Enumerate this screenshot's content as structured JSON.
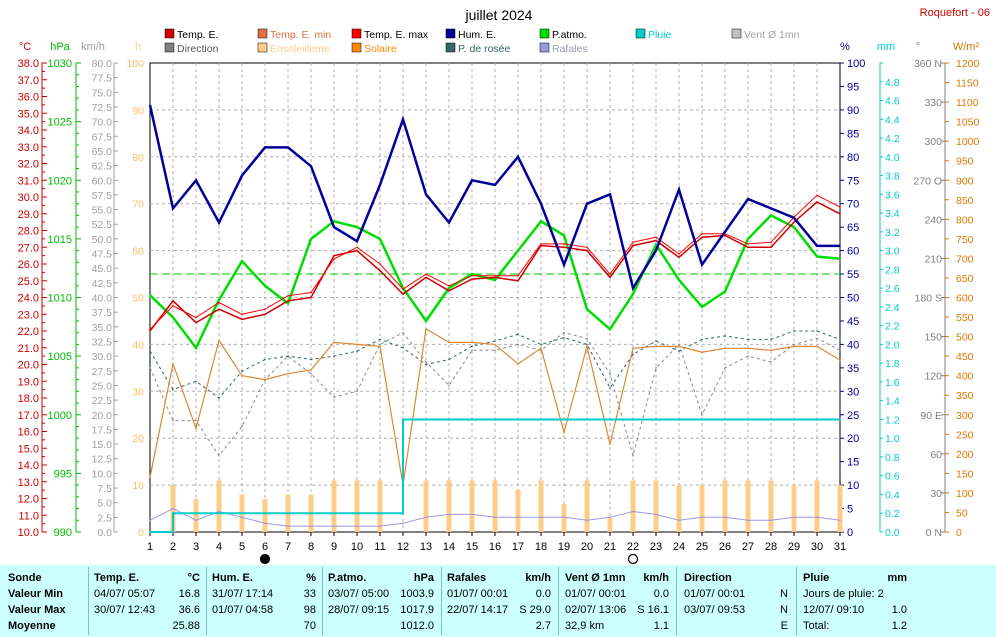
{
  "title": "juillet 2024",
  "station": "Roquefort - 06",
  "legend": [
    {
      "label": "Temp. E.",
      "color": "#cc0000"
    },
    {
      "label": "Temp. E. min",
      "color": "#e07040"
    },
    {
      "label": "Temp. E. max",
      "color": "#ff0000"
    },
    {
      "label": "Hum. E.",
      "color": "#000099"
    },
    {
      "label": "P.atmo.",
      "color": "#00dd00"
    },
    {
      "label": "Pluie",
      "color": "#00cccc"
    },
    {
      "label": "Vent Ø 1mn",
      "color": "#c0c0c0"
    },
    {
      "label": "Direction",
      "color": "#808080"
    },
    {
      "label": "Ensoleilleme",
      "color": "#ffcc88"
    },
    {
      "label": "Solaire",
      "color": "#ff8800"
    },
    {
      "label": "P. de rosée",
      "color": "#336666"
    },
    {
      "label": "Rafales",
      "color": "#9999dd"
    }
  ],
  "axis_units": {
    "temp": "°C",
    "pressure": "hPa",
    "wind": "km/h",
    "sun": "h",
    "humidity": "%",
    "rain": "mm",
    "direction": "°",
    "solar": "W/m²"
  },
  "chart_data": {
    "type": "line",
    "x": [
      1,
      2,
      3,
      4,
      5,
      6,
      7,
      8,
      9,
      10,
      11,
      12,
      13,
      14,
      15,
      16,
      17,
      18,
      19,
      20,
      21,
      22,
      23,
      24,
      25,
      26,
      27,
      28,
      29,
      30,
      31
    ],
    "moon_markers": [
      {
        "day": 6,
        "phase": "new"
      },
      {
        "day": 22,
        "phase": "full"
      }
    ],
    "axes": {
      "temp": {
        "label": "°C",
        "range": [
          10,
          38
        ],
        "step": 0.5,
        "ticks_every": 1
      },
      "pressure": {
        "label": "hPa",
        "range": [
          990,
          1030
        ],
        "ticks": [
          990,
          995,
          1000,
          1005,
          1010,
          1015,
          1020,
          1025,
          1030
        ]
      },
      "wind": {
        "label": "km/h",
        "range": [
          0,
          80
        ],
        "ticks_every": 2.5
      },
      "sun": {
        "label": "h",
        "range": [
          0,
          100
        ],
        "ticks_every": 10
      },
      "humidity": {
        "label": "%",
        "range": [
          0,
          100
        ],
        "ticks_every": 5
      },
      "rain": {
        "label": "mm",
        "range": [
          0,
          5
        ],
        "ticks_every": 0.2
      },
      "direction": {
        "label": "°",
        "range": [
          0,
          360
        ],
        "ticks": [
          "0 N",
          "30",
          "60",
          "90 E",
          "120",
          "150",
          "180 S",
          "210",
          "240",
          "270 O",
          "300",
          "330",
          "360 N"
        ]
      },
      "solar": {
        "label": "W/m²",
        "range": [
          0,
          1200
        ],
        "ticks_every": 50
      }
    },
    "series": [
      {
        "name": "Hum. E.",
        "axis": "humidity",
        "color": "#000099",
        "values": [
          91,
          69,
          75,
          66,
          76,
          82,
          82,
          78,
          65,
          62,
          74,
          88,
          72,
          66,
          75,
          74,
          80,
          70,
          57,
          70,
          72,
          52,
          60,
          73,
          57,
          64,
          71,
          69,
          67,
          61,
          61
        ]
      },
      {
        "name": "P.atmo.",
        "axis": "pressure",
        "color": "#00dd00",
        "values": [
          1010.2,
          1008.3,
          1005.7,
          1009.8,
          1013.1,
          1011.0,
          1009.5,
          1015.0,
          1016.5,
          1016.0,
          1015.0,
          1010.8,
          1008.0,
          1010.8,
          1012.0,
          1011.5,
          1014.0,
          1016.5,
          1015.3,
          1009.0,
          1007.3,
          1010.3,
          1014.5,
          1011.5,
          1009.2,
          1010.5,
          1015.0,
          1017.0,
          1016.0,
          1013.5,
          1013.3
        ]
      },
      {
        "name": "Temp. E. max",
        "axis": "temp",
        "color": "#ff0000",
        "values": [
          22.1,
          23.5,
          22.8,
          23.7,
          23.0,
          23.3,
          24.1,
          24.3,
          26.3,
          27.0,
          26.0,
          24.5,
          25.4,
          24.7,
          25.3,
          25.3,
          25.3,
          27.2,
          27.2,
          27.0,
          25.4,
          27.3,
          27.6,
          26.6,
          27.8,
          27.8,
          27.2,
          27.3,
          28.8,
          30.1,
          29.4
        ]
      },
      {
        "name": "Temp. E.",
        "axis": "temp",
        "color": "#cc0000",
        "values": [
          22.0,
          23.8,
          22.5,
          23.3,
          22.7,
          23.0,
          23.8,
          24.0,
          26.5,
          26.8,
          25.6,
          24.2,
          25.2,
          24.4,
          25.1,
          25.2,
          25.0,
          27.1,
          27.0,
          26.8,
          25.2,
          27.1,
          27.4,
          26.4,
          27.6,
          27.7,
          27.0,
          27.0,
          28.5,
          29.7,
          29.0
        ]
      },
      {
        "name": "Solaire",
        "axis": "solar",
        "color": "#dd8833",
        "values": [
          140,
          430,
          265,
          490,
          400,
          390,
          405,
          415,
          485,
          480,
          475,
          120,
          520,
          485,
          485,
          480,
          430,
          470,
          255,
          475,
          225,
          470,
          475,
          475,
          460,
          470,
          470,
          465,
          475,
          475,
          440
        ]
      },
      {
        "name": "P. de rosée",
        "axis": "temp",
        "color": "#336666",
        "dashed": true,
        "values": [
          20.8,
          18.5,
          19.0,
          18.0,
          19.6,
          20.3,
          20.5,
          20.3,
          20.5,
          20.8,
          21.5,
          21.0,
          20.0,
          20.3,
          21.1,
          21.4,
          21.8,
          21.2,
          21.6,
          21.2,
          18.6,
          20.6,
          21.4,
          20.8,
          21.5,
          21.7,
          21.5,
          21.5,
          22.0,
          22.0,
          21.5
        ]
      },
      {
        "name": "Vent Ø 1mn",
        "axis": "wind",
        "color": "#888888",
        "dashed": true,
        "values": [
          28,
          19,
          19,
          13,
          18,
          26,
          30,
          27,
          23,
          24,
          32,
          34,
          29,
          25,
          31,
          31,
          32,
          31,
          34,
          33,
          27,
          13,
          28,
          32,
          20,
          28,
          30,
          29,
          32,
          33,
          31
        ]
      },
      {
        "name": "Rafales",
        "axis": "wind",
        "color": "#9999dd",
        "values": [
          2.0,
          4.0,
          2.0,
          3.5,
          2.5,
          1.5,
          1.0,
          1.0,
          1.0,
          1.0,
          1.0,
          1.5,
          2.5,
          3.0,
          3.0,
          2.5,
          2.5,
          2.5,
          2.5,
          2.0,
          2.5,
          3.5,
          3.0,
          2.0,
          2.5,
          2.5,
          2.0,
          2.0,
          2.5,
          2.5,
          2.0
        ]
      },
      {
        "name": "Pluie",
        "axis": "rain",
        "color": "#00cccc",
        "step": true,
        "values": [
          0,
          0.2,
          0.2,
          0.2,
          0.2,
          0.2,
          0.2,
          0.2,
          0.2,
          0.2,
          0.2,
          1.2,
          1.2,
          1.2,
          1.2,
          1.2,
          1.2,
          1.2,
          1.2,
          1.2,
          1.2,
          1.2,
          1.2,
          1.2,
          1.2,
          1.2,
          1.2,
          1.2,
          1.2,
          1.2,
          1.2
        ]
      },
      {
        "name": "Ensoleilleme",
        "axis": "sun",
        "color": "#ffcc88",
        "type": "bar",
        "values": [
          0,
          10,
          7,
          11,
          8,
          7,
          8,
          8,
          11,
          11,
          11,
          0,
          11,
          11,
          11,
          11,
          9,
          11,
          6,
          11,
          3,
          11,
          11,
          10,
          10,
          11,
          11,
          11,
          10,
          11,
          10
        ]
      }
    ]
  },
  "stats": {
    "sonde": {
      "title": "Sonde",
      "rows": [
        "Valeur Min",
        "Valeur Max",
        "Moyenne"
      ]
    },
    "temp": {
      "title": "Temp. E.",
      "unit": "°C",
      "min_time": "04/07/ 05:07",
      "min_val": "16.8",
      "max_time": "30/07/ 12:43",
      "max_val": "36.6",
      "avg": "25.88"
    },
    "hum": {
      "title": "Hum. E.",
      "unit": "%",
      "min_time": "31/07/ 17:14",
      "min_val": "33",
      "max_time": "01/07/ 04:58",
      "max_val": "98",
      "avg": "70"
    },
    "patmo": {
      "title": "P.atmo.",
      "unit": "hPa",
      "min_time": "03/07/ 05:00",
      "min_val": "1003.9",
      "max_time": "28/07/ 09:15",
      "max_val": "1017.9",
      "avg": "1012.0"
    },
    "rafales": {
      "title": "Rafales",
      "unit": "km/h",
      "min_time": "01/07/ 00:01",
      "min_val": "0.0",
      "max_time": "22/07/ 14:17",
      "max_val": "S 29.0",
      "avg": "2.7"
    },
    "vent": {
      "title": "Vent Ø 1mn",
      "unit": "km/h",
      "min_time": "01/07/ 00:01",
      "min_val": "0.0",
      "max_time": "02/07/ 13:06",
      "max_val": "S 16.1",
      "avg_label": "32,9 km",
      "avg": "1.1"
    },
    "dir": {
      "title": "Direction",
      "min_time": "01/07/ 00:01",
      "min_val": "N",
      "max_time": "03/07/ 09:53",
      "max_val": "N",
      "avg": "E"
    },
    "pluie": {
      "title": "Pluie",
      "unit": "mm",
      "row1": "Jours de pluie: 2",
      "max_time": "12/07/ 09:10",
      "max_val": "1.0",
      "total_label": "Total:",
      "total": "1.2"
    }
  }
}
